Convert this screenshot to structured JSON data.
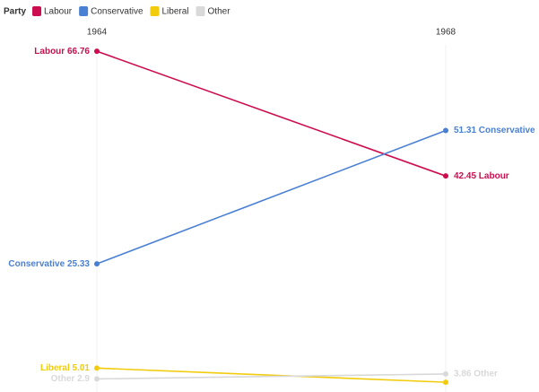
{
  "chart_data": {
    "type": "slope",
    "legend_title": "Party",
    "categories": [
      "1964",
      "1968"
    ],
    "series": [
      {
        "name": "Labour",
        "color": "#cc0d4f",
        "values": [
          66.76,
          42.45
        ],
        "value_labels": [
          "Labour 66.76",
          "42.45 Labour"
        ]
      },
      {
        "name": "Conservative",
        "color": "#4a80d4",
        "values": [
          25.33,
          51.31
        ],
        "value_labels": [
          "Conservative 25.33",
          "51.31 Conservative"
        ]
      },
      {
        "name": "Liberal",
        "color": "#f2cc0c",
        "values": [
          5.01,
          2.25
        ],
        "value_labels": [
          "Liberal 5.01",
          null
        ]
      },
      {
        "name": "Other",
        "color": "#d9d9d9",
        "values": [
          2.9,
          3.86
        ],
        "value_labels": [
          "Other 2.9",
          "3.86 Other"
        ]
      }
    ],
    "ylim": [
      0,
      70
    ],
    "legend": "top-left"
  }
}
